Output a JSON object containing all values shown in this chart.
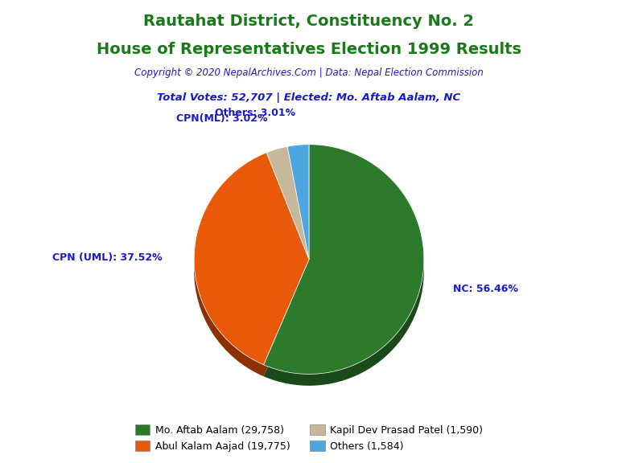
{
  "title_line1": "Rautahat District, Constituency No. 2",
  "title_line2": "House of Representatives Election 1999 Results",
  "title_color": "#1a7a1a",
  "copyright_text": "Copyright © 2020 NepalArchives.Com | Data: Nepal Election Commission",
  "copyright_color": "#1a1acd",
  "total_votes_text": "Total Votes: 52,707 | Elected: Mo. Aftab Aalam, NC",
  "total_votes_color": "#1a1acd",
  "slices": [
    {
      "label": "NC",
      "value": 29758,
      "pct": 56.46,
      "color": "#2d7a2d"
    },
    {
      "label": "CPN (UML)",
      "value": 19775,
      "pct": 37.52,
      "color": "#e8590a"
    },
    {
      "label": "CPN(ML)",
      "value": 1590,
      "pct": 3.02,
      "color": "#c8b89a"
    },
    {
      "label": "Others",
      "value": 1584,
      "pct": 3.01,
      "color": "#4da6e0"
    }
  ],
  "legend_entries": [
    {
      "label": "Mo. Aftab Aalam (29,758)",
      "color": "#2d7a2d"
    },
    {
      "label": "Abul Kalam Aajad (19,775)",
      "color": "#e8590a"
    },
    {
      "label": "Kapil Dev Prasad Patel (1,590)",
      "color": "#c8b89a"
    },
    {
      "label": "Others (1,584)",
      "color": "#4da6e0"
    }
  ],
  "label_color": "#1a1acd",
  "background_color": "#ffffff"
}
